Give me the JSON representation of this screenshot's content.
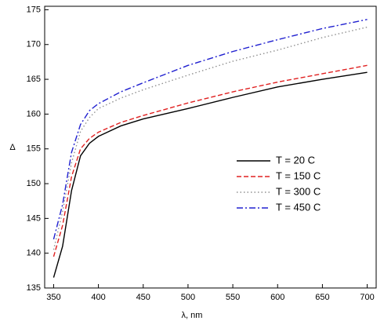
{
  "chart_data": {
    "type": "line",
    "x_label": "λ, nm",
    "y_label": "Δ",
    "x": [
      350,
      360,
      370,
      380,
      390,
      400,
      425,
      450,
      500,
      550,
      600,
      650,
      700
    ],
    "series": [
      {
        "name": "T = 20 C",
        "color": "#000000",
        "dash": "solid",
        "values": [
          136.5,
          141,
          149,
          154,
          155.8,
          156.8,
          158.3,
          159.3,
          160.8,
          162.4,
          163.9,
          165,
          166
        ]
      },
      {
        "name": "T = 150 C",
        "color": "#e02020",
        "dash": "dashed",
        "values": [
          139.5,
          144,
          151,
          155,
          156.5,
          157.4,
          158.8,
          159.8,
          161.6,
          163.2,
          164.6,
          165.8,
          167
        ]
      },
      {
        "name": "T = 300 C",
        "color": "#909090",
        "dash": "dotted",
        "values": [
          140.5,
          146,
          153,
          157.5,
          159.5,
          160.8,
          162.3,
          163.5,
          165.6,
          167.6,
          169.2,
          171,
          172.5
        ]
      },
      {
        "name": "T = 450 C",
        "color": "#2020d0",
        "dash": "dashdot",
        "values": [
          142,
          147,
          154.5,
          158.5,
          160.5,
          161.5,
          163.2,
          164.5,
          167,
          169,
          170.7,
          172.3,
          173.6
        ]
      }
    ],
    "xlim": [
      340,
      710
    ],
    "xticks": [
      350,
      400,
      450,
      500,
      550,
      600,
      650,
      700
    ],
    "ylim": [
      135,
      175.5
    ],
    "yticks": [
      135,
      140,
      145,
      150,
      155,
      160,
      165,
      170,
      175
    ],
    "grid": false,
    "legend": "lower-right"
  }
}
